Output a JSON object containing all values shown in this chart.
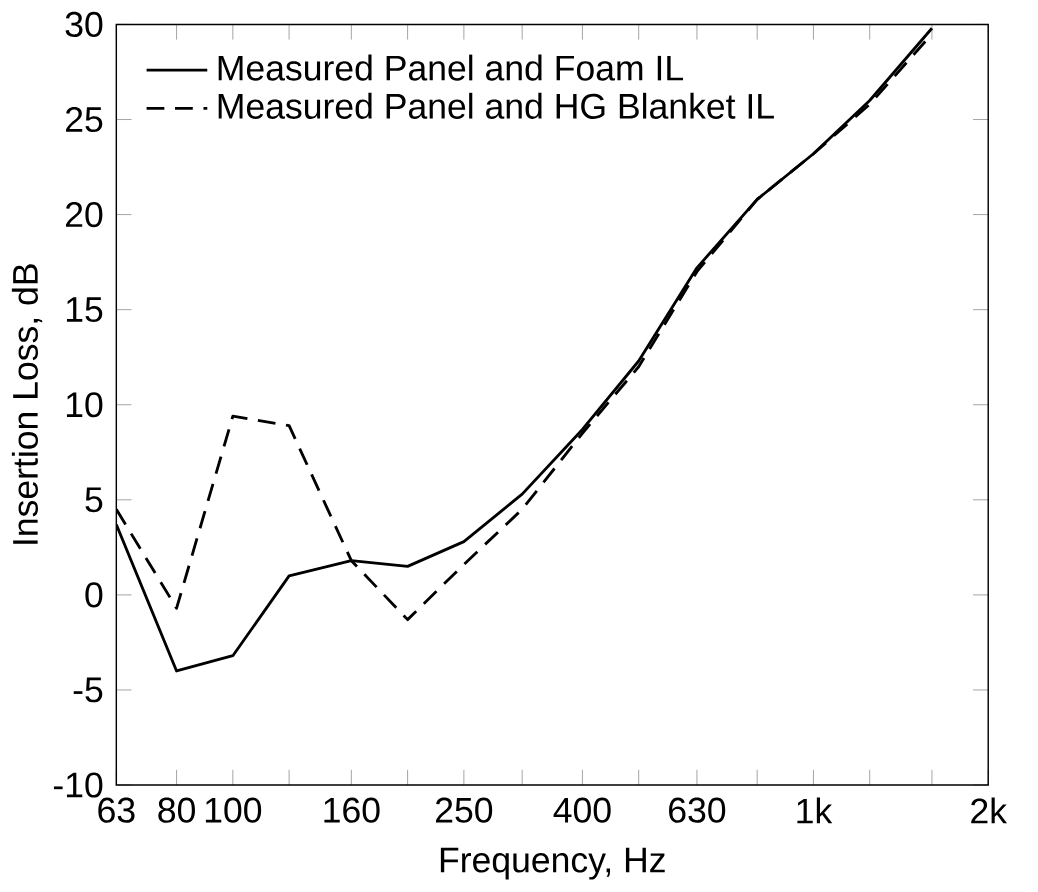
{
  "chart_data": {
    "type": "line",
    "xlabel": "Frequency, Hz",
    "ylabel": "Insertion Loss, dB",
    "log": "x",
    "x": [
      63,
      80,
      100,
      125,
      160,
      200,
      250,
      315,
      400,
      500,
      630,
      800,
      1000,
      1250,
      1600
    ],
    "series": [
      {
        "name": "Measured Panel and Foam IL",
        "color": "#000000",
        "line_style": "solid",
        "values": [
          3.7,
          -4.0,
          -3.2,
          1.0,
          1.8,
          1.5,
          2.8,
          5.3,
          8.7,
          12.3,
          17.2,
          20.8,
          23.2,
          26.0,
          29.8
        ]
      },
      {
        "name": "Measured Panel and HG Blanket IL",
        "color": "#000000",
        "line_style": "dashed",
        "values": [
          4.5,
          -0.7,
          9.4,
          8.9,
          1.8,
          -1.3,
          1.6,
          4.5,
          8.5,
          12.0,
          17.0,
          20.8,
          23.2,
          25.8,
          29.5
        ]
      }
    ],
    "xlim": [
      63,
      2000
    ],
    "ylim": [
      -10,
      30
    ],
    "xticks": [
      63,
      80,
      100,
      {
        "value": 125,
        "label": null
      },
      160,
      {
        "value": 200,
        "label": null
      },
      250,
      {
        "value": 315,
        "label": null
      },
      400,
      {
        "value": 500,
        "label": null
      },
      630,
      {
        "value": 800,
        "label": null
      },
      {
        "value": 1000,
        "label": "1k"
      },
      {
        "value": 1250,
        "label": null
      },
      {
        "value": 1600,
        "label": null
      },
      {
        "value": 2000,
        "label": "2k"
      }
    ],
    "yticks": [
      -10,
      -5,
      0,
      5,
      10,
      15,
      20,
      25,
      30
    ],
    "grid": false,
    "legend": "top left",
    "marker": "none"
  }
}
